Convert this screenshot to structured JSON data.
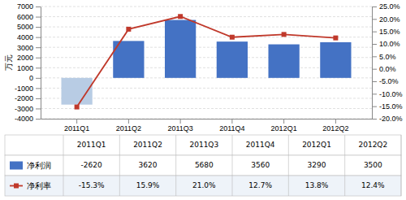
{
  "chart_data": {
    "type": "bar",
    "categories": [
      "2011Q1",
      "2011Q2",
      "2011Q3",
      "2011Q4",
      "2012Q1",
      "2012Q2"
    ],
    "series": [
      {
        "name": "净利润",
        "type": "bar",
        "color": "#4472c4",
        "colors": [
          "#b8cce4",
          "#4472c4",
          "#4472c4",
          "#4472c4",
          "#4472c4",
          "#4472c4"
        ],
        "values": [
          -2620,
          3620,
          5680,
          3560,
          3290,
          3500
        ]
      },
      {
        "name": "净利率",
        "type": "line",
        "axis": "y2",
        "color": "#c0392b",
        "marker": "square",
        "values": [
          -15.3,
          15.9,
          21.0,
          12.7,
          13.8,
          12.4
        ],
        "value_labels": [
          "-15.3%",
          "15.9%",
          "21.0%",
          "12.7%",
          "13.8%",
          "12.4%"
        ]
      }
    ],
    "ylabel": "万元",
    "ylim": [
      -4000,
      7000
    ],
    "yticks": [
      -4000,
      -3000,
      -2000,
      -1000,
      0,
      1000,
      2000,
      3000,
      4000,
      5000,
      6000,
      7000
    ],
    "y2lim": [
      -20.0,
      25.0
    ],
    "y2ticks": [
      {
        "value": -20.0,
        "label": "-20.0%"
      },
      {
        "value": -15.0,
        "label": "-15.0%"
      },
      {
        "value": -10.0,
        "label": "-10.0%"
      },
      {
        "value": -5.0,
        "label": "-5.0%"
      },
      {
        "value": 0.0,
        "label": "0.0%"
      },
      {
        "value": 5.0,
        "label": "5.0%"
      },
      {
        "value": 10.0,
        "label": "10.0%"
      },
      {
        "value": 15.0,
        "label": "15.0%"
      },
      {
        "value": 20.0,
        "label": "20.0%"
      },
      {
        "value": 25.0,
        "label": "25.0%"
      }
    ],
    "grid": true,
    "data_labels": true
  }
}
